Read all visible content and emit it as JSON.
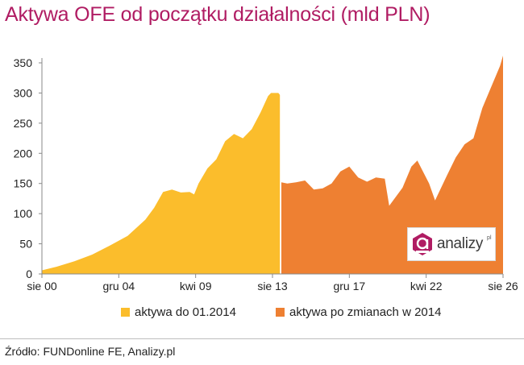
{
  "chart_data": {
    "type": "area",
    "title": "Aktywa OFE od początku działalności (mld PLN)",
    "x_start": "2000-08",
    "x_end": "2026-08",
    "y_range": [
      0,
      350
    ],
    "y_ticks": [
      0,
      50,
      100,
      150,
      200,
      250,
      300,
      350
    ],
    "x_ticks": [
      {
        "label": "sie 00",
        "date": "2000-08"
      },
      {
        "label": "gru 04",
        "date": "2004-12"
      },
      {
        "label": "kwi 09",
        "date": "2009-04"
      },
      {
        "label": "sie 13",
        "date": "2013-08"
      },
      {
        "label": "gru 17",
        "date": "2017-12"
      },
      {
        "label": "kwi 22",
        "date": "2022-04"
      },
      {
        "label": "sie 26",
        "date": "2026-08"
      }
    ],
    "grid": false,
    "legend_position": "bottom",
    "series": [
      {
        "name": "aktywa do 01.2014",
        "color": "#fbbd2c",
        "points": [
          [
            "2000-08",
            6
          ],
          [
            "2001-06",
            12
          ],
          [
            "2002-06",
            21
          ],
          [
            "2003-06",
            32
          ],
          [
            "2004-06",
            47
          ],
          [
            "2005-06",
            63
          ],
          [
            "2006-06",
            90
          ],
          [
            "2006-12",
            110
          ],
          [
            "2007-06",
            136
          ],
          [
            "2007-12",
            140
          ],
          [
            "2008-06",
            135
          ],
          [
            "2008-12",
            136
          ],
          [
            "2009-03",
            132
          ],
          [
            "2009-06",
            150
          ],
          [
            "2009-12",
            175
          ],
          [
            "2010-06",
            190
          ],
          [
            "2010-12",
            220
          ],
          [
            "2011-06",
            232
          ],
          [
            "2011-12",
            225
          ],
          [
            "2012-06",
            240
          ],
          [
            "2012-12",
            268
          ],
          [
            "2013-05",
            295
          ],
          [
            "2013-07",
            300
          ],
          [
            "2013-12",
            300
          ],
          [
            "2014-01",
            297
          ]
        ]
      },
      {
        "name": "aktywa po zmianach w 2014",
        "color": "#ee8032",
        "points": [
          [
            "2014-02",
            152
          ],
          [
            "2014-06",
            150
          ],
          [
            "2014-12",
            152
          ],
          [
            "2015-06",
            155
          ],
          [
            "2015-12",
            140
          ],
          [
            "2016-06",
            142
          ],
          [
            "2016-12",
            150
          ],
          [
            "2017-06",
            170
          ],
          [
            "2017-12",
            178
          ],
          [
            "2018-06",
            160
          ],
          [
            "2018-12",
            153
          ],
          [
            "2019-06",
            160
          ],
          [
            "2019-12",
            158
          ],
          [
            "2020-03",
            113
          ],
          [
            "2020-12",
            143
          ],
          [
            "2021-06",
            178
          ],
          [
            "2021-10",
            188
          ],
          [
            "2022-06",
            150
          ],
          [
            "2022-10",
            122
          ],
          [
            "2023-06",
            163
          ],
          [
            "2023-12",
            193
          ],
          [
            "2024-06",
            215
          ],
          [
            "2024-12",
            225
          ],
          [
            "2025-06",
            275
          ],
          [
            "2025-12",
            310
          ],
          [
            "2026-06",
            345
          ],
          [
            "2026-08",
            362
          ]
        ]
      }
    ]
  },
  "logo": {
    "text": "analizy",
    "suffix": "pl",
    "icon": "analizy-logo-icon",
    "accent": "#b01c63"
  },
  "source": "Źródło: FUNDonline FE, Analizy.pl"
}
